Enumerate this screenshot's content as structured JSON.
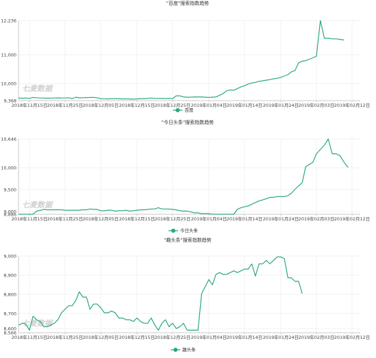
{
  "chart_data": [
    {
      "type": "line",
      "title": "\"百度\"搜索指数趋势",
      "watermark": "七麦数据",
      "legend": "百度",
      "legend_position": "bottom-center",
      "color": "#2aa87e",
      "grid": true,
      "x_ticks": [
        "2018年11月15日",
        "2018年11月25日",
        "2018年12月05日",
        "2018年12月15日",
        "2018年12月25日",
        "2019年01月04日",
        "2019年01月14日",
        "2019年01月24日",
        "2019年02月03日",
        "2019年02月12日"
      ],
      "y_ticks": [
        "9,368",
        "10,000",
        "11,000",
        "12,236"
      ],
      "ylim": [
        9368,
        12236
      ],
      "values": [
        9460,
        9460,
        9455,
        9460,
        9450,
        9480,
        9470,
        9460,
        9460,
        9455,
        9458,
        9460,
        9465,
        9462,
        9460,
        9470,
        9440,
        9490,
        9465,
        9470,
        9475,
        9480,
        9480,
        9470,
        9440,
        9435,
        9430,
        9440,
        9440,
        9440,
        9430,
        9430,
        9430,
        9420,
        9430,
        9440,
        9440,
        9450,
        9460,
        9450,
        9450,
        9445,
        9445,
        9450,
        9440,
        9540,
        9540,
        9500,
        9490,
        9490,
        9500,
        9500,
        9500,
        9490,
        9480,
        9490,
        9500,
        9560,
        9620,
        9720,
        9750,
        9740,
        9800,
        9860,
        9900,
        9960,
        10000,
        10020,
        10060,
        10080,
        10100,
        10120,
        10150,
        10170,
        10200,
        10250,
        10300,
        10400,
        10450,
        10720,
        10780,
        10800,
        10850,
        10900,
        10960,
        12236,
        11600,
        11600,
        11580,
        11580,
        11560,
        11540
      ]
    },
    {
      "type": "line",
      "title": "\"今日头条\"搜索指数趋势",
      "watermark": "七麦数据",
      "legend": "今日头条",
      "legend_position": "bottom-center",
      "color": "#2aa87e",
      "grid": true,
      "x_ticks": [
        "2018年11月15日",
        "2018年11月25日",
        "2018年12月05日",
        "2018年12月15日",
        "2018年12月25日",
        "2019年01月04日",
        "2019年01月14日",
        "2019年01月24日",
        "2019年02月03日",
        "2019年02月12日"
      ],
      "y_ticks": [
        "8,886",
        "9,000",
        "9,500",
        "10,000",
        "10,646"
      ],
      "ylim": [
        8886,
        10646
      ],
      "values": [
        8880,
        8885,
        8880,
        8890,
        8880,
        8870,
        8960,
        8975,
        9000,
        8990,
        8990,
        8990,
        8990,
        8990,
        8980,
        8980,
        8980,
        8980,
        8980,
        8990,
        8990,
        9010,
        9000,
        9000,
        8970,
        8970,
        8980,
        8980,
        8960,
        8970,
        8970,
        8980,
        8960,
        8970,
        8980,
        8990,
        8990,
        9000,
        9010,
        9010,
        9040,
        9010,
        9010,
        9010,
        9000,
        8990,
        8970,
        8960,
        8960,
        8940,
        8920,
        8920,
        8900,
        8900,
        8900,
        8880,
        8890,
        8880,
        8880,
        8880,
        8880,
        8880,
        9000,
        9040,
        9060,
        9080,
        9120,
        9160,
        9200,
        9220,
        9250,
        9280,
        9280,
        9300,
        9300,
        9300,
        9320,
        9380,
        9470,
        9550,
        9620,
        10000,
        10050,
        10100,
        10300,
        10400,
        10500,
        10646,
        10300,
        10300,
        10250,
        10100,
        9980
      ]
    },
    {
      "type": "line",
      "title": "\"趣头条\"搜索指数趋势",
      "watermark": "七麦数据",
      "legend": "趣头条",
      "legend_position": "bottom-center",
      "color": "#2aa87e",
      "grid": true,
      "x_ticks": [
        "2018年11月15日",
        "2018年11月25日",
        "2018年12月05日",
        "2018年12月15日",
        "2018年12月25日",
        "2019年01月04日",
        "2019年01月14日",
        "2019年01月24日",
        "2019年02月03日",
        "2019年02月12日"
      ],
      "y_ticks": [
        "8,566",
        "8,600",
        "8,700",
        "8,800",
        "8,900",
        "9,000"
      ],
      "ylim": [
        8566,
        9005
      ],
      "values": [
        8610,
        8610,
        8620,
        8615,
        8580,
        8660,
        8640,
        8630,
        8600,
        8600,
        8610,
        8620,
        8640,
        8680,
        8700,
        8720,
        8720,
        8750,
        8800,
        8770,
        8770,
        8700,
        8730,
        8730,
        8710,
        8680,
        8680,
        8690,
        8680,
        8650,
        8650,
        8640,
        8640,
        8630,
        8650,
        8630,
        8620,
        8620,
        8650,
        8610,
        8580,
        8620,
        8640,
        8600,
        8620,
        8590,
        8600,
        8620,
        8580,
        8580,
        8580,
        8580,
        8790,
        8830,
        8870,
        8840,
        8900,
        8910,
        8900,
        8900,
        8910,
        8920,
        8910,
        8920,
        8930,
        8930,
        8960,
        8890,
        8960,
        8960,
        8980,
        8960,
        8980,
        9000,
        9000,
        8990,
        8880,
        8880,
        8860,
        8860,
        8790
      ]
    }
  ]
}
